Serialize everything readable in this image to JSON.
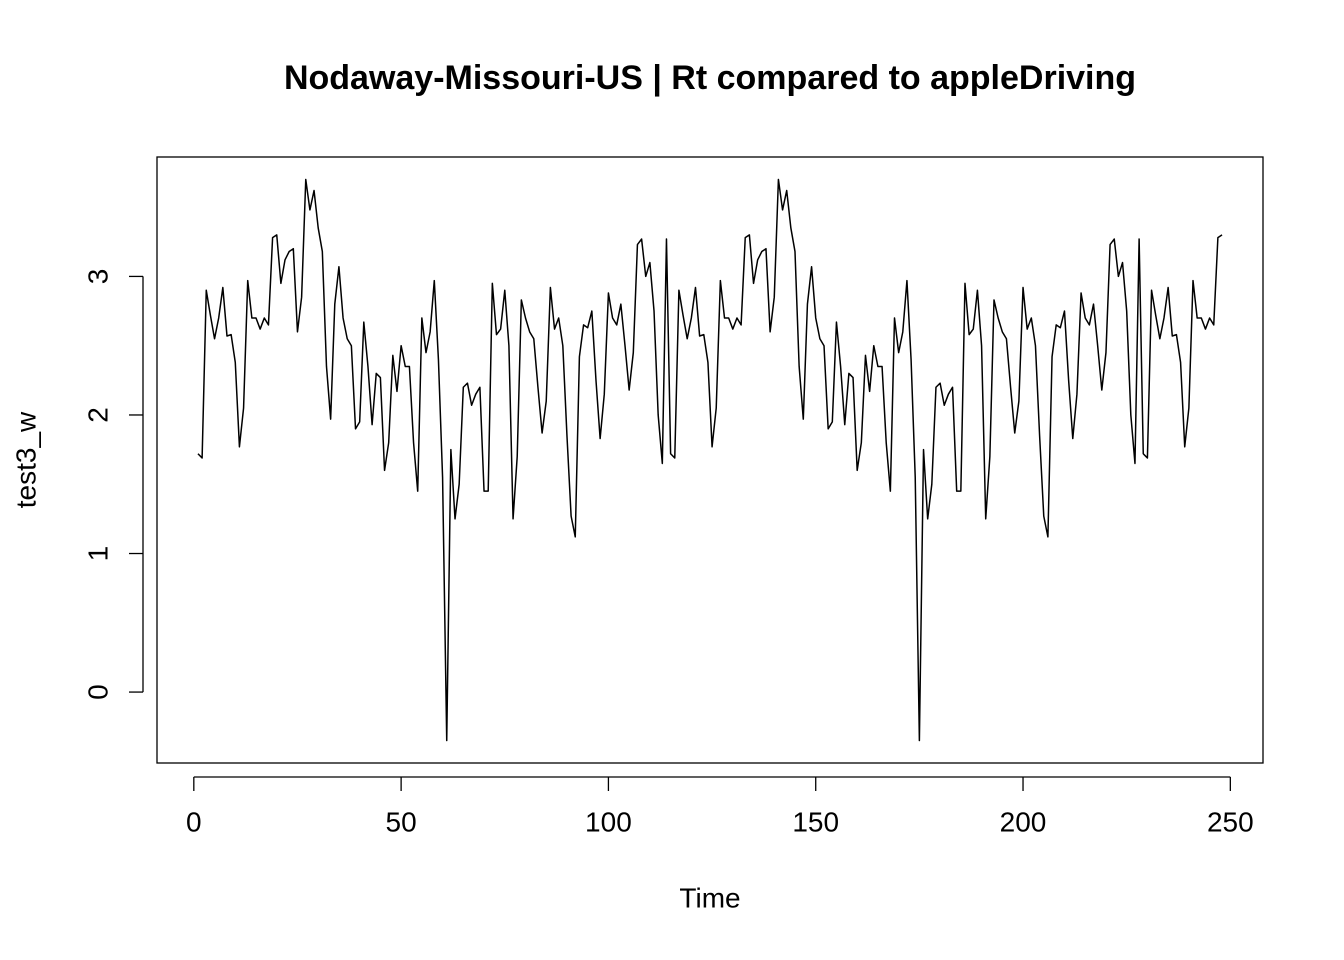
{
  "chart_data": {
    "type": "line",
    "title": "Nodaway-Missouri-US | Rt compared to appleDriving",
    "x_label": "Time",
    "y_label": "test3_w",
    "x": [
      1,
      2,
      3,
      4,
      5,
      6,
      7,
      8,
      9,
      10,
      11,
      12,
      13,
      14,
      15,
      16,
      17,
      18,
      19,
      20,
      21,
      22,
      23,
      24,
      25,
      26,
      27,
      28,
      29,
      30,
      31,
      32,
      33,
      34,
      35,
      36,
      37,
      38,
      39,
      40,
      41,
      42,
      43,
      44,
      45,
      46,
      47,
      48,
      49,
      50,
      51,
      52,
      53,
      54,
      55,
      56,
      57,
      58,
      59,
      60,
      61,
      62,
      63,
      64,
      65,
      66,
      67,
      68,
      69,
      70,
      71,
      72,
      73,
      74,
      75,
      76,
      77,
      78,
      79,
      80,
      81,
      82,
      83,
      84,
      85,
      86,
      87,
      88,
      89,
      90,
      91,
      92,
      93,
      94,
      95,
      96,
      97,
      98,
      99,
      100,
      101,
      102,
      103,
      104,
      105,
      106,
      107,
      108,
      109,
      110,
      111,
      112,
      113,
      114,
      115,
      116,
      117,
      118,
      119,
      120,
      121,
      122,
      123,
      124,
      125,
      126,
      127,
      128,
      129,
      130,
      131,
      132,
      133,
      134,
      135,
      136,
      137,
      138,
      139,
      140,
      141,
      142,
      143,
      144,
      145,
      146,
      147,
      148,
      149,
      150,
      151,
      152,
      153,
      154,
      155,
      156,
      157,
      158,
      159,
      160,
      161,
      162,
      163,
      164,
      165,
      166,
      167,
      168,
      169,
      170,
      171,
      172,
      173,
      174,
      175,
      176,
      177,
      178,
      179,
      180,
      181,
      182,
      183,
      184,
      185,
      186,
      187,
      188,
      189,
      190,
      191,
      192,
      193,
      194,
      195,
      196,
      197,
      198,
      199,
      200,
      201,
      202,
      203,
      204,
      205,
      206,
      207,
      208,
      209,
      210,
      211,
      212,
      213,
      214,
      215,
      216,
      217,
      218,
      219,
      220,
      221,
      222,
      223,
      224,
      225,
      226,
      227,
      228,
      229,
      230,
      231,
      232,
      233,
      234,
      235,
      236,
      237,
      238,
      239,
      240,
      241,
      242,
      243,
      244,
      245,
      246,
      247,
      248
    ],
    "series": [
      {
        "name": "test3_w",
        "color": "#000000",
        "values": [
          1.72,
          1.69,
          2.9,
          2.72,
          2.55,
          2.7,
          2.92,
          2.57,
          2.58,
          2.38,
          1.77,
          2.05,
          2.97,
          2.7,
          2.7,
          2.62,
          2.7,
          2.65,
          3.28,
          3.3,
          2.95,
          3.12,
          3.18,
          3.2,
          2.6,
          2.85,
          3.7,
          3.48,
          3.62,
          3.35,
          3.18,
          2.35,
          1.97,
          2.8,
          3.07,
          2.7,
          2.55,
          2.5,
          1.9,
          1.95,
          2.67,
          2.35,
          1.93,
          2.3,
          2.27,
          1.6,
          1.8,
          2.43,
          2.17,
          2.5,
          2.35,
          2.35,
          1.8,
          1.45,
          2.7,
          2.45,
          2.6,
          2.97,
          2.4,
          1.55,
          -0.35,
          1.75,
          1.25,
          1.5,
          2.2,
          2.23,
          2.07,
          2.15,
          2.2,
          1.45,
          1.45,
          2.95,
          2.58,
          2.62,
          2.9,
          2.5,
          1.25,
          1.7,
          2.83,
          2.7,
          2.6,
          2.55,
          2.2,
          1.87,
          2.1,
          2.92,
          2.62,
          2.7,
          2.5,
          1.85,
          1.27,
          1.12,
          2.42,
          2.65,
          2.63,
          2.75,
          2.25,
          1.83,
          2.15,
          2.88,
          2.7,
          2.65,
          2.8,
          2.5,
          2.18,
          2.45,
          3.23,
          3.27,
          3.0,
          3.1,
          2.75,
          2.0,
          1.65,
          3.27,
          1.72,
          1.69,
          2.9,
          2.72,
          2.55,
          2.7,
          2.92,
          2.57,
          2.58,
          2.38,
          1.77,
          2.05,
          2.97,
          2.7,
          2.7,
          2.62,
          2.7,
          2.65,
          3.28,
          3.3,
          2.95,
          3.12,
          3.18,
          3.2,
          2.6,
          2.85,
          3.7,
          3.48,
          3.62,
          3.35,
          3.18,
          2.35,
          1.97,
          2.8,
          3.07,
          2.7,
          2.55,
          2.5,
          1.9,
          1.95,
          2.67,
          2.35,
          1.93,
          2.3,
          2.27,
          1.6,
          1.8,
          2.43,
          2.17,
          2.5,
          2.35,
          2.35,
          1.8,
          1.45,
          2.7,
          2.45,
          2.6,
          2.97,
          2.4,
          1.55,
          -0.35,
          1.75,
          1.25,
          1.5,
          2.2,
          2.23,
          2.07,
          2.15,
          2.2,
          1.45,
          1.45,
          2.95,
          2.58,
          2.62,
          2.9,
          2.5,
          1.25,
          1.7,
          2.83,
          2.7,
          2.6,
          2.55,
          2.2,
          1.87,
          2.1,
          2.92,
          2.62,
          2.7,
          2.5,
          1.85,
          1.27,
          1.12,
          2.42,
          2.65,
          2.63,
          2.75,
          2.25,
          1.83,
          2.15,
          2.88,
          2.7,
          2.65,
          2.8,
          2.5,
          2.18,
          2.45,
          3.23,
          3.27,
          3.0,
          3.1,
          2.75,
          2.0,
          1.65,
          3.27,
          1.72,
          1.69,
          2.9,
          2.72,
          2.55,
          2.7,
          2.92,
          2.57,
          2.58,
          2.38,
          1.77,
          2.05,
          2.97,
          2.7,
          2.7,
          2.62,
          2.7,
          2.65,
          3.28,
          3.3
        ]
      }
    ],
    "xlim": [
      -8.88,
      257.88
    ],
    "xticks": [
      0,
      50,
      100,
      150,
      200,
      250
    ],
    "ylim": [
      -0.512,
      3.862
    ],
    "yticks": [
      0,
      1,
      2,
      3
    ]
  }
}
